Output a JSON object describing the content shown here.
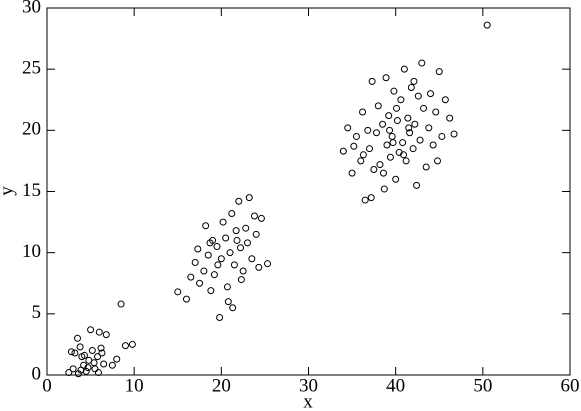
{
  "chart_data": {
    "type": "scatter",
    "xlabel": "x",
    "ylabel": "y",
    "xlim": [
      0,
      60
    ],
    "ylim": [
      0,
      30
    ],
    "xticks": [
      0,
      10,
      20,
      30,
      40,
      50,
      60
    ],
    "yticks": [
      0,
      5,
      10,
      15,
      20,
      25,
      30
    ],
    "color": "#000000",
    "x": [
      2.5,
      3,
      3.2,
      3.5,
      3.8,
      4,
      4.2,
      4.5,
      4.8,
      5,
      5.2,
      5.5,
      5.8,
      6,
      6.2,
      6.5,
      6.8,
      3.6,
      4.7,
      5.4,
      6.3,
      2.8,
      3.9,
      7.5,
      8,
      8.5,
      9,
      9.8,
      5.9,
      4.3,
      15,
      16,
      16.5,
      17,
      17.3,
      17.5,
      18,
      18.2,
      18.5,
      18.8,
      19,
      19.2,
      19.5,
      19.8,
      20,
      20.2,
      20.5,
      20.7,
      21,
      21.2,
      21.3,
      21.5,
      21.7,
      22,
      22.2,
      22.5,
      22.8,
      23,
      23.2,
      23.5,
      23.8,
      24,
      24.3,
      24.6,
      25.3,
      20.8,
      19.6,
      22.3,
      18.7,
      21.8,
      34,
      34.5,
      35,
      35.2,
      35.5,
      36,
      36.2,
      36.5,
      36.8,
      37,
      37.3,
      37.5,
      37.8,
      38,
      38.2,
      38.5,
      38.7,
      38.9,
      39,
      39.2,
      39.4,
      39.6,
      39.8,
      40,
      40.2,
      40.4,
      40.6,
      40.8,
      41,
      41.2,
      41.4,
      41.6,
      41.8,
      42,
      42.2,
      42.4,
      42.6,
      42.8,
      43,
      43.2,
      43.5,
      43.8,
      44,
      44.3,
      44.6,
      45,
      45.3,
      45.7,
      46.2,
      46.7,
      37.2,
      38.6,
      39.3,
      40.1,
      40.9,
      41.5,
      39.7,
      42.1,
      36.3,
      44.8,
      50.5
    ],
    "y": [
      0.2,
      0.5,
      1.8,
      3.0,
      2.3,
      1.5,
      0.8,
      0.3,
      1.2,
      3.7,
      2.0,
      0.5,
      1.5,
      3.5,
      2.2,
      0.9,
      3.3,
      0.1,
      0.6,
      1.0,
      1.8,
      1.9,
      0.4,
      0.8,
      1.3,
      5.8,
      2.4,
      2.5,
      0.2,
      1.6,
      6.8,
      6.2,
      8.0,
      9.2,
      10.3,
      7.5,
      8.5,
      12.2,
      9.8,
      6.9,
      11.0,
      8.2,
      10.5,
      4.7,
      9.5,
      12.5,
      11.2,
      7.2,
      10.0,
      13.2,
      5.5,
      9.0,
      11.8,
      14.2,
      10.4,
      8.5,
      12.0,
      10.8,
      14.5,
      9.5,
      13.0,
      11.5,
      8.8,
      12.8,
      9.1,
      6.0,
      9.0,
      7.8,
      10.8,
      11.0,
      18.3,
      20.2,
      16.5,
      18.7,
      19.5,
      17.5,
      21.5,
      14.3,
      20.0,
      18.5,
      24.0,
      16.8,
      19.8,
      22.0,
      17.2,
      20.5,
      15.2,
      24.3,
      18.8,
      21.2,
      17.8,
      19.5,
      23.2,
      16.0,
      20.8,
      18.2,
      22.5,
      19.0,
      25.0,
      17.5,
      21.0,
      19.8,
      23.5,
      18.5,
      20.5,
      15.5,
      22.8,
      19.2,
      25.5,
      21.8,
      17.0,
      20.2,
      23.0,
      18.8,
      21.5,
      24.8,
      19.5,
      22.5,
      21.0,
      19.7,
      14.5,
      16.5,
      20.0,
      21.8,
      18.0,
      20.2,
      19.0,
      24.0,
      18.0,
      17.5,
      28.6
    ]
  }
}
